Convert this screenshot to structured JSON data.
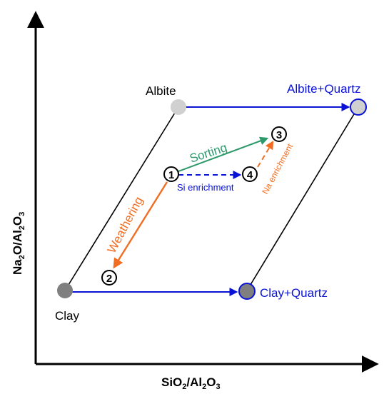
{
  "axes": {
    "x_label": {
      "main": "SiO",
      "sub1": "2",
      "mid": "/Al",
      "sub2": "2",
      "tail": "O",
      "sub3": "3"
    },
    "y_label": {
      "main": "Na",
      "sub1": "2",
      "mid": "O/Al",
      "sub2": "2",
      "tail": "O",
      "sub3": "3"
    }
  },
  "endmembers": {
    "albite": "Albite",
    "albite_quartz": "Albite+Quartz",
    "clay": "Clay",
    "clay_quartz": "Clay+Quartz"
  },
  "points": {
    "p1": "1",
    "p2": "2",
    "p3": "3",
    "p4": "4"
  },
  "process_labels": {
    "sorting": "Sorting",
    "weathering": "Weathering",
    "si_enrichment": "Si enrichment",
    "na_enrichment": "Na enrichment"
  },
  "colors": {
    "black": "#000000",
    "blue": "#0a12d6",
    "orange": "#f26d21",
    "green": "#2e9a6b",
    "light_gray": "#d0d0d0",
    "dark_gray": "#7f7f7f"
  }
}
